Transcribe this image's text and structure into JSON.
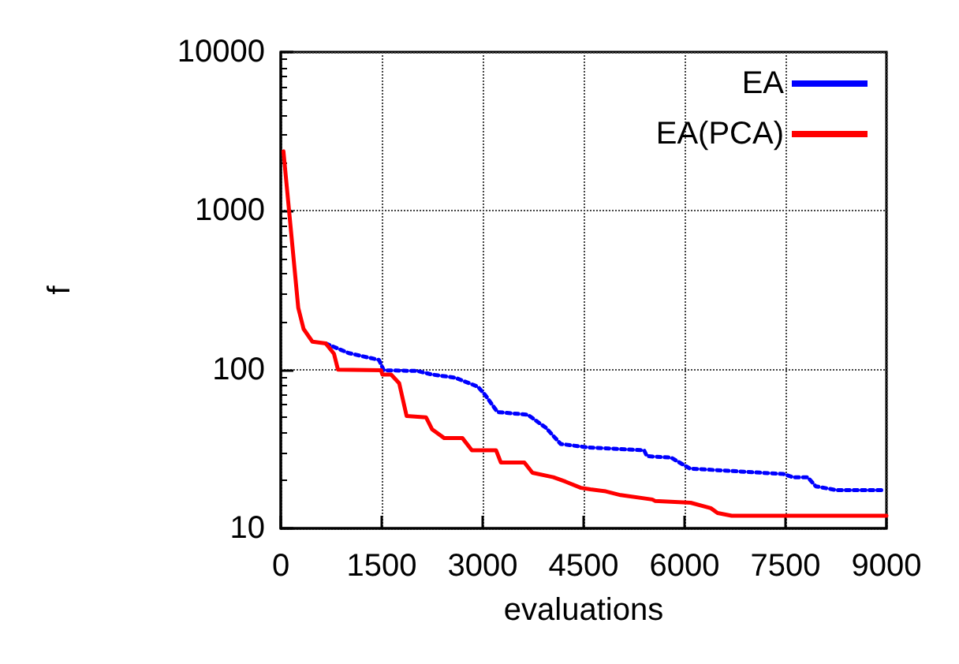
{
  "chart_data": {
    "type": "line",
    "xlabel": "evaluations",
    "ylabel": "f",
    "log": "y",
    "grid": true,
    "legend": "top right",
    "marker": "none",
    "xlim": [
      0,
      9000
    ],
    "xticks": [
      0,
      1500,
      3000,
      4500,
      6000,
      7500,
      9000
    ],
    "ylim": [
      10,
      10000
    ],
    "yticks": [
      10,
      100,
      1000,
      10000
    ],
    "series": [
      {
        "name": "EA",
        "color": "#0000ff",
        "line_style": "dotted",
        "x": [
          670,
          1010,
          1460,
          1530,
          2030,
          2250,
          2590,
          2930,
          3040,
          3220,
          3670,
          3940,
          4160,
          4550,
          5400,
          5440,
          5800,
          6080,
          7470,
          7610,
          7830,
          7950,
          8260,
          8940
        ],
        "values": [
          146,
          127,
          115,
          99,
          98,
          93,
          89,
          78,
          69,
          54,
          52,
          43,
          34,
          32.4,
          31,
          28.5,
          27.9,
          23.8,
          22,
          21,
          21,
          18.4,
          17.4,
          17.4
        ]
      },
      {
        "name": "EA(PCA)",
        "color": "#ff0000",
        "line_style": "solid",
        "x": [
          40,
          260,
          340,
          470,
          670,
          790,
          850,
          1490,
          1510,
          1640,
          1760,
          1870,
          2160,
          2250,
          2430,
          2700,
          2840,
          3200,
          3270,
          3620,
          3740,
          4050,
          4230,
          4460,
          4600,
          4830,
          5050,
          5520,
          5560,
          6090,
          6390,
          6490,
          6700,
          9000
        ],
        "values": [
          2370,
          245,
          180,
          150,
          146,
          126,
          100,
          99,
          93,
          93,
          82,
          51,
          50,
          42,
          37,
          37,
          31,
          31,
          26,
          26,
          22.4,
          21,
          19.7,
          18,
          17.6,
          17.1,
          16.2,
          15.2,
          14.9,
          14.5,
          13.4,
          12.5,
          12,
          12
        ]
      }
    ]
  }
}
